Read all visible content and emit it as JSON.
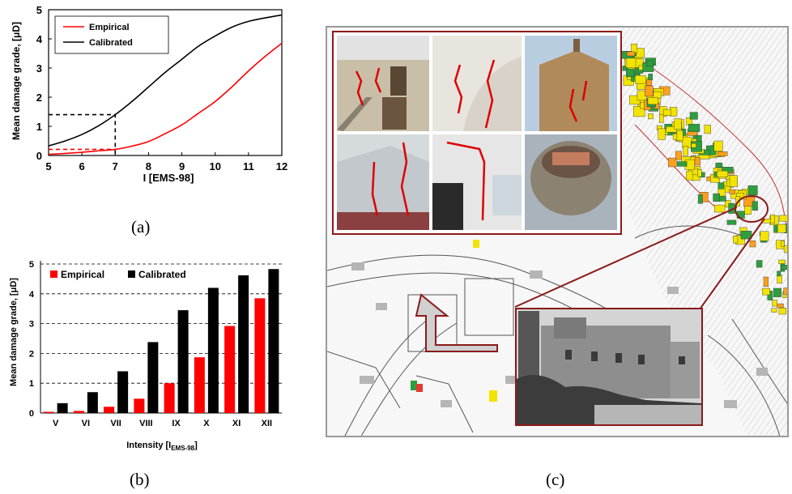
{
  "colors": {
    "empirical": "#ff0000",
    "calibrated": "#000000",
    "frame": "#8b1a1a"
  },
  "captions": {
    "a": "(a)",
    "b": "(b)",
    "c": "(c)"
  },
  "chart_data": [
    {
      "type": "line",
      "xlabel": "I [EMS-98]",
      "ylabel": "Mean damage grade, [μD]",
      "xlim": [
        5,
        12
      ],
      "ylim": [
        0,
        5
      ],
      "xticks": [
        "5",
        "6",
        "7",
        "8",
        "9",
        "10",
        "11",
        "12"
      ],
      "yticks": [
        "0",
        "1",
        "2",
        "3",
        "4",
        "5"
      ],
      "legend": "top-left",
      "grid": false,
      "series": [
        {
          "name": "Empirical",
          "x": [
            5,
            5.5,
            6,
            6.5,
            7,
            7.5,
            8,
            8.5,
            9,
            9.5,
            10,
            10.5,
            11,
            11.5,
            12
          ],
          "y": [
            0.04,
            0.07,
            0.11,
            0.16,
            0.21,
            0.32,
            0.48,
            0.75,
            1.05,
            1.45,
            1.85,
            2.35,
            2.9,
            3.4,
            3.85
          ]
        },
        {
          "name": "Calibrated",
          "x": [
            5,
            5.5,
            6,
            6.5,
            7,
            7.5,
            8,
            8.5,
            9,
            9.5,
            10,
            10.5,
            11,
            11.5,
            12
          ],
          "y": [
            0.33,
            0.5,
            0.72,
            1.02,
            1.4,
            1.85,
            2.35,
            2.85,
            3.3,
            3.75,
            4.1,
            4.4,
            4.6,
            4.72,
            4.82
          ]
        }
      ],
      "guides": [
        {
          "x": 7,
          "y_empirical": 0.21,
          "y_calibrated": 1.4
        }
      ]
    },
    {
      "type": "bar",
      "xlabel": "Intensity [I",
      "xlabel_sub": "EMS-98",
      "xlabel_end": "]",
      "ylabel": "Mean damage grade, [μD]",
      "categories": [
        "V",
        "VI",
        "VII",
        "VIII",
        "IX",
        "X",
        "XI",
        "XII"
      ],
      "ylim": [
        0,
        5
      ],
      "yticks": [
        "0",
        "1",
        "2",
        "3",
        "4",
        "5"
      ],
      "grid": "horizontal dashed",
      "legend": "top",
      "series": [
        {
          "name": "Empirical",
          "values": [
            0.04,
            0.07,
            0.21,
            0.48,
            1.0,
            1.87,
            2.92,
            3.85
          ]
        },
        {
          "name": "Calibrated",
          "values": [
            0.33,
            0.7,
            1.4,
            2.38,
            3.45,
            4.2,
            4.62,
            4.83
          ]
        }
      ]
    }
  ]
}
